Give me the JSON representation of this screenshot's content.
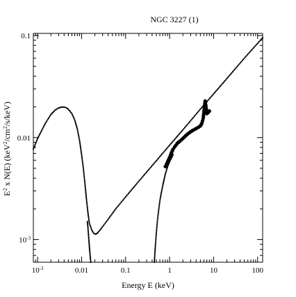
{
  "chart_data": {
    "type": "line",
    "title": "NGC 3227 (1)",
    "xlabel": "Energy E (keV)",
    "ylabel_parts": [
      "E",
      "2",
      " x N(E) (keV",
      "2",
      "/cm",
      "2",
      "/s/keV)"
    ],
    "xscale": "log",
    "yscale": "log",
    "xlim": [
      0.0008,
      130
    ],
    "ylim": [
      0.0006,
      0.105
    ],
    "x_ticks": [
      {
        "v": 0.001,
        "base": "10",
        "exp": "-3"
      },
      {
        "v": 0.01,
        "base": "0.01",
        "exp": ""
      },
      {
        "v": 0.1,
        "base": "0.1",
        "exp": ""
      },
      {
        "v": 1,
        "base": "1",
        "exp": ""
      },
      {
        "v": 10,
        "base": "10",
        "exp": ""
      },
      {
        "v": 100,
        "base": "100",
        "exp": ""
      }
    ],
    "y_ticks": [
      {
        "v": 0.001,
        "base": "10",
        "exp": "-3"
      },
      {
        "v": 0.01,
        "base": "0.01",
        "exp": ""
      },
      {
        "v": 0.1,
        "base": "0.1",
        "exp": ""
      }
    ],
    "series": [
      {
        "style": "small-dots",
        "x": [
          0.0008,
          0.001,
          0.0015,
          0.002,
          0.0025,
          0.003,
          0.0035,
          0.004,
          0.0045,
          0.005,
          0.006,
          0.007,
          0.008,
          0.009,
          0.01,
          0.011,
          0.012,
          0.013,
          0.014,
          0.015,
          0.017,
          0.019,
          0.021,
          0.023,
          0.025,
          0.03,
          0.04,
          0.06,
          0.1,
          0.2,
          0.5,
          1,
          2,
          5,
          10,
          20,
          50,
          130
        ],
        "y": [
          0.0077,
          0.0098,
          0.0138,
          0.0168,
          0.0186,
          0.0195,
          0.0199,
          0.0199,
          0.0196,
          0.0189,
          0.0172,
          0.0148,
          0.0121,
          0.0093,
          0.0068,
          0.0049,
          0.0034,
          0.0024,
          0.0018,
          0.00145,
          0.00124,
          0.00115,
          0.00113,
          0.00116,
          0.00121,
          0.00134,
          0.00158,
          0.00201,
          0.00262,
          0.00374,
          0.00593,
          0.00842,
          0.0119,
          0.019,
          0.0268,
          0.0379,
          0.0601,
          0.0952
        ]
      },
      {
        "style": "small-dots",
        "x": [
          0.0135,
          0.0138,
          0.0141,
          0.0144,
          0.0147,
          0.015,
          0.0153,
          0.0156,
          0.0159,
          0.0162
        ],
        "y": [
          0.0015,
          0.00138,
          0.00122,
          0.00108,
          0.00096,
          0.00086,
          0.00077,
          0.0007,
          0.00064,
          0.0006
        ]
      },
      {
        "style": "small-dots",
        "x": [
          0.45,
          0.47,
          0.5,
          0.53,
          0.56,
          0.6,
          0.65,
          0.7,
          0.75,
          0.8,
          0.85,
          0.9,
          0.95,
          1.0,
          1.1,
          1.2
        ],
        "y": [
          0.0006,
          0.00082,
          0.00118,
          0.00155,
          0.0019,
          0.0024,
          0.0029,
          0.0034,
          0.0039,
          0.0044,
          0.0048,
          0.0052,
          0.0055,
          0.0058,
          0.0063,
          0.0068
        ]
      },
      {
        "style": "thick-dots",
        "x": [
          0.8,
          0.9,
          1.0,
          1.1,
          1.2,
          1.3,
          1.5,
          1.7,
          2.0,
          2.3,
          2.6,
          3.0,
          3.4,
          3.8,
          4.2,
          4.6,
          5.0,
          5.4,
          5.8,
          6.1,
          6.4,
          6.7,
          7.0,
          7.5,
          8.0
        ],
        "y": [
          0.0052,
          0.0058,
          0.0064,
          0.0071,
          0.0077,
          0.0081,
          0.0088,
          0.0092,
          0.0098,
          0.0104,
          0.0109,
          0.0114,
          0.0118,
          0.0121,
          0.0124,
          0.0127,
          0.013,
          0.0138,
          0.0155,
          0.0188,
          0.0228,
          0.0201,
          0.0172,
          0.0176,
          0.0182
        ]
      }
    ],
    "grid": false,
    "legend": "none",
    "colors": {
      "line": "#000000",
      "background": "#ffffff"
    }
  }
}
